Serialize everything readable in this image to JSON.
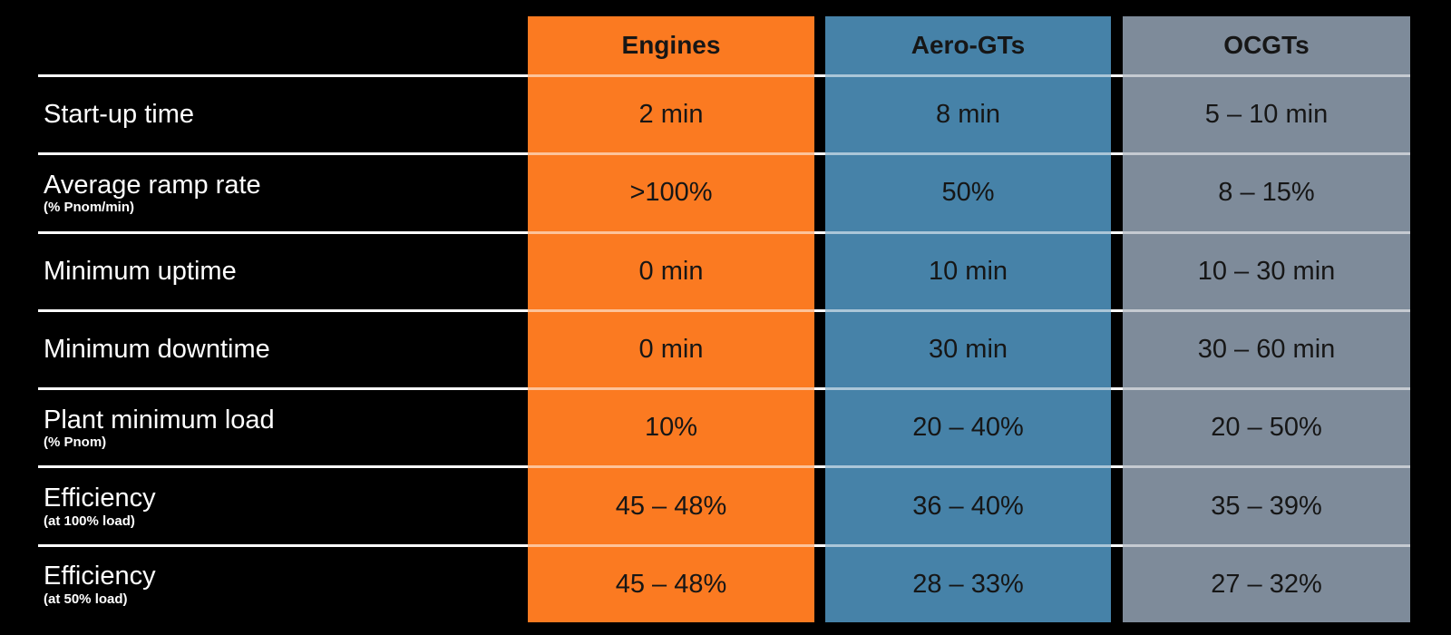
{
  "chart_data": {
    "type": "table",
    "title": "",
    "background_color": "#000000",
    "gridline_color": "#ffffff",
    "label_text_color": "#ffffff",
    "value_text_color": "#161616",
    "columns": [
      {
        "label": "Engines",
        "color": "#fb7a21"
      },
      {
        "label": "Aero-GTs",
        "color": "#4682a8"
      },
      {
        "label": "OCGTs",
        "color": "#7e8b9a"
      }
    ],
    "rows": [
      {
        "label": "Start-up time",
        "sublabel": "",
        "values": [
          "2 min",
          "8 min",
          "5 – 10 min"
        ]
      },
      {
        "label": "Average ramp rate",
        "sublabel": "(% Pnom/min)",
        "values": [
          ">100%",
          "50%",
          "8 – 15%"
        ]
      },
      {
        "label": "Minimum uptime",
        "sublabel": "",
        "values": [
          "0 min",
          "10 min",
          "10 – 30 min"
        ]
      },
      {
        "label": "Minimum downtime",
        "sublabel": "",
        "values": [
          "0 min",
          "30 min",
          "30 – 60 min"
        ]
      },
      {
        "label": "Plant minimum load",
        "sublabel": "(% Pnom)",
        "values": [
          "10%",
          "20 – 40%",
          "20 – 50%"
        ]
      },
      {
        "label": "Efficiency",
        "sublabel": "(at 100% load)",
        "values": [
          "45 – 48%",
          "36 – 40%",
          "35 – 39%"
        ]
      },
      {
        "label": "Efficiency",
        "sublabel": "(at 50% load)",
        "values": [
          "45 – 48%",
          "28 – 33%",
          "27 – 32%"
        ]
      }
    ]
  }
}
